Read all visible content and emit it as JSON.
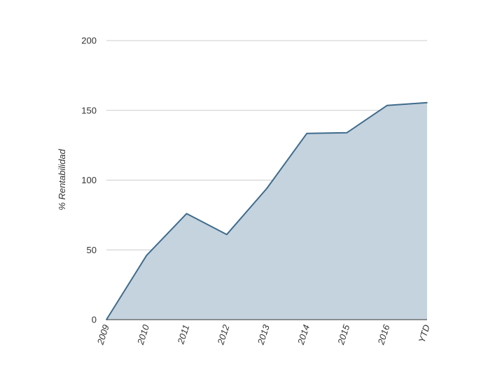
{
  "colors": {
    "line": "#3f6b8c",
    "area": "#c5d3de",
    "grid": "#cccccc",
    "axis": "#333333",
    "text": "#333333"
  },
  "chart_data": {
    "type": "area",
    "title": "",
    "xlabel": "",
    "ylabel": "% Rentabilidad",
    "categories": [
      "2009",
      "2010",
      "2011",
      "2012",
      "2013",
      "2014",
      "2015",
      "2016",
      "YTD"
    ],
    "series": [
      {
        "values": [
          0,
          46,
          76,
          61,
          94,
          133.5,
          134,
          153.5,
          155.5
        ]
      }
    ],
    "ylim": [
      0,
      200
    ],
    "yticks": [
      "0",
      "50",
      "100",
      "150",
      "200"
    ],
    "grid": true,
    "legend": "none"
  }
}
